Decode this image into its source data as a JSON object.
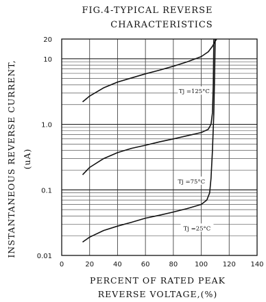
{
  "chart_data": {
    "type": "line",
    "title_line1": "FIG.4-TYPICAL REVERSE",
    "title_line2": "CHARACTERISTICS",
    "xlabel_line1": "PERCENT OF RATED PEAK",
    "xlabel_line2": "REVERSE VOLTAGE,(%)",
    "ylabel_line1": "INSTANTANEOUS REVERSE CURRENT,",
    "ylabel_line2": "(uA)",
    "x_scale": "linear",
    "y_scale": "log",
    "xlim": [
      0,
      140
    ],
    "ylim": [
      0.01,
      20
    ],
    "x_ticks": [
      "0",
      "20",
      "40",
      "60",
      "80",
      "100",
      "120",
      "140"
    ],
    "y_ticks": [
      {
        "value": 0.01,
        "label": "0.01"
      },
      {
        "value": 0.1,
        "label": "0.1"
      },
      {
        "value": 1,
        "label": "1.0"
      },
      {
        "value": 10,
        "label": "10"
      },
      {
        "value": 20,
        "label": "20"
      }
    ],
    "grid": true,
    "series": [
      {
        "name": "Tj =125°C",
        "label_position": [
          95,
          3.2
        ],
        "points": [
          [
            15,
            2.2
          ],
          [
            20,
            2.7
          ],
          [
            30,
            3.6
          ],
          [
            40,
            4.4
          ],
          [
            50,
            5.1
          ],
          [
            60,
            5.9
          ],
          [
            70,
            6.7
          ],
          [
            80,
            7.7
          ],
          [
            90,
            9.0
          ],
          [
            100,
            10.8
          ],
          [
            105,
            12.8
          ],
          [
            108,
            15.5
          ],
          [
            110,
            18.5
          ],
          [
            111,
            20
          ]
        ]
      },
      {
        "name": "Tj =75°C",
        "label_position": [
          93,
          0.135
        ],
        "points": [
          [
            15,
            0.17
          ],
          [
            20,
            0.22
          ],
          [
            30,
            0.3
          ],
          [
            40,
            0.37
          ],
          [
            50,
            0.43
          ],
          [
            60,
            0.48
          ],
          [
            70,
            0.54
          ],
          [
            80,
            0.6
          ],
          [
            90,
            0.67
          ],
          [
            100,
            0.75
          ],
          [
            105,
            0.84
          ],
          [
            107,
            1.0
          ],
          [
            108,
            1.5
          ],
          [
            108.6,
            4
          ],
          [
            109,
            20
          ]
        ]
      },
      {
        "name": "Tj =25°C",
        "label_position": [
          97,
          0.026
        ],
        "points": [
          [
            15,
            0.016
          ],
          [
            20,
            0.019
          ],
          [
            30,
            0.024
          ],
          [
            40,
            0.028
          ],
          [
            50,
            0.032
          ],
          [
            60,
            0.037
          ],
          [
            70,
            0.041
          ],
          [
            80,
            0.046
          ],
          [
            90,
            0.052
          ],
          [
            100,
            0.06
          ],
          [
            104,
            0.07
          ],
          [
            106,
            0.09
          ],
          [
            107,
            0.15
          ],
          [
            108,
            0.4
          ],
          [
            109,
            1.5
          ],
          [
            109.6,
            6
          ],
          [
            110,
            20
          ]
        ]
      }
    ]
  }
}
